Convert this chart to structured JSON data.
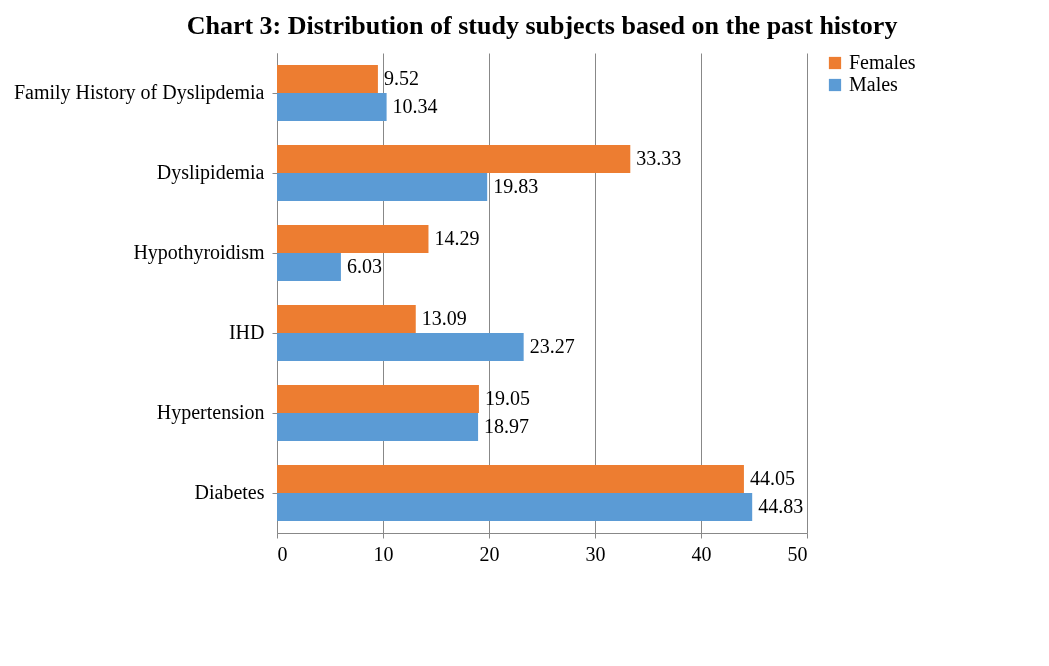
{
  "chart_data": {
    "type": "bar",
    "orientation": "horizontal",
    "title": "Chart 3: Distribution of study subjects based on the past history",
    "categories": [
      "Family History of Dyslipdemia",
      "Dyslipidemia",
      "Hypothyroidism",
      "IHD",
      "Hypertension",
      "Diabetes"
    ],
    "series": [
      {
        "name": "Females",
        "color": "#ed7d31",
        "values": [
          9.52,
          33.33,
          14.29,
          13.09,
          19.05,
          44.05
        ]
      },
      {
        "name": "Males",
        "color": "#5b9bd5",
        "values": [
          10.34,
          19.83,
          6.03,
          23.27,
          18.97,
          44.83
        ]
      }
    ],
    "xlim": [
      0,
      50
    ],
    "xticks": [
      0,
      10,
      20,
      30,
      40,
      50
    ],
    "grid": "x",
    "legend": "right",
    "data_labels": true
  }
}
